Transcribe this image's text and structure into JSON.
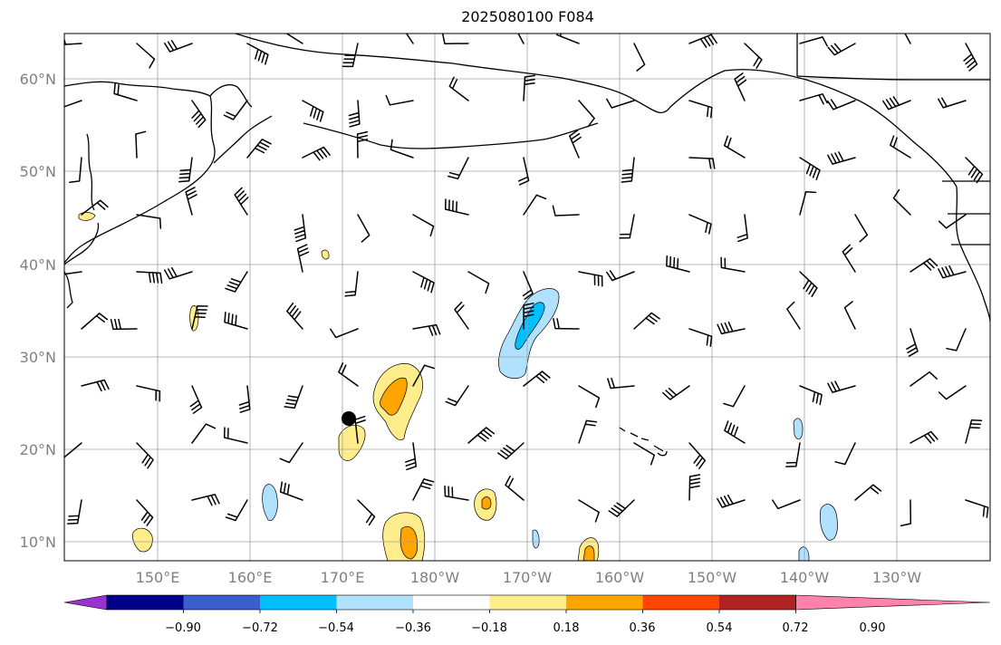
{
  "title": "2025080100 F084",
  "map": {
    "lat_labels": [
      "10°N",
      "20°N",
      "30°N",
      "40°N",
      "50°N",
      "60°N"
    ],
    "lon_labels": [
      "150°E",
      "160°E",
      "170°E",
      "180°W",
      "170°W",
      "160°W",
      "150°W",
      "140°W",
      "130°W"
    ],
    "gridlines": true,
    "features": [
      "coastlines",
      "wind-barbs",
      "filled-contours",
      "storm-center-marker"
    ]
  },
  "colorbar": {
    "ticks": [
      "−0.90",
      "−0.72",
      "−0.54",
      "−0.36",
      "−0.18",
      "0.18",
      "0.36",
      "0.54",
      "0.72",
      "0.90"
    ],
    "colors": [
      "#9a32cd",
      "#00008b",
      "#3a5fcd",
      "#00bfff",
      "#b0e2ff",
      "#ffffff",
      "#ffec8b",
      "#ffa500",
      "#ff4500",
      "#b22222",
      "#ff82ab"
    ],
    "extend": "both"
  }
}
